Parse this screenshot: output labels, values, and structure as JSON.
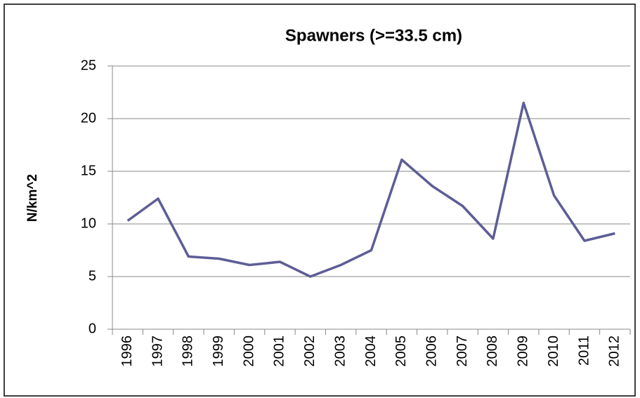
{
  "chart_data": {
    "type": "line",
    "title": "Spawners (>=33.5 cm)",
    "y_label": "N/km^2",
    "categories": [
      "1996",
      "1997",
      "1998",
      "1999",
      "2000",
      "2001",
      "2002",
      "2003",
      "2004",
      "2005",
      "2006",
      "2007",
      "2008",
      "2009",
      "2010",
      "2011",
      "2012"
    ],
    "series": [
      {
        "name": "Spawners",
        "color": "#5d5d96",
        "values": [
          10.3,
          12.4,
          6.9,
          6.7,
          6.1,
          6.4,
          5.0,
          6.1,
          7.5,
          16.1,
          13.6,
          11.7,
          8.6,
          21.5,
          12.7,
          8.4,
          9.1
        ]
      }
    ],
    "ylim": [
      0,
      25
    ],
    "yticks": [
      0,
      5,
      10,
      15,
      20,
      25
    ],
    "grid": true
  }
}
